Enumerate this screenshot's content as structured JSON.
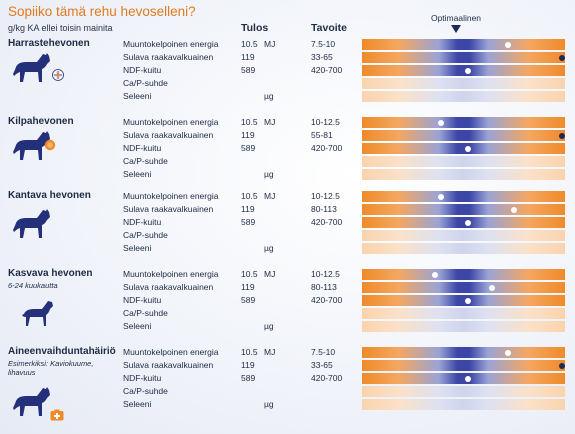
{
  "title": "Sopiiko tämä rehu hevoselleni?",
  "subtitle": "g/kg KA ellei toisin mainita",
  "headers": {
    "result": "Tulos",
    "target": "Tavoite"
  },
  "optimal_label": "Optimaalinen",
  "colors": {
    "orange": "#ef8a2a",
    "blue": "#3c46a6",
    "title": "#e07a1f"
  },
  "sections": [
    {
      "name": "Harrastehevonen",
      "description": "",
      "icon": "horse-icon",
      "badge": "flower-badge-icon",
      "rows": [
        {
          "label": "Muuntokelpoinen energia",
          "value": "10.5",
          "unit": "MJ",
          "target": "7.5-10",
          "marker": 0.72
        },
        {
          "label": "Sulava raakavalkuainen",
          "value": "119",
          "unit": "",
          "target": "33-65",
          "marker": 1.0
        },
        {
          "label": "NDF-kuitu",
          "value": "589",
          "unit": "",
          "target": "420-700",
          "marker": 0.52
        },
        {
          "label": "Ca/P-suhde",
          "value": "",
          "unit": "",
          "target": "",
          "marker": null
        },
        {
          "label": "Seleeni",
          "value": "",
          "unit": "µg",
          "target": "",
          "marker": null
        }
      ]
    },
    {
      "name": "Kilpahevonen",
      "description": "",
      "icon": "horse-icon",
      "badge": "medal-badge-icon",
      "rows": [
        {
          "label": "Muuntokelpoinen energia",
          "value": "10.5",
          "unit": "MJ",
          "target": "10-12.5",
          "marker": 0.39
        },
        {
          "label": "Sulava raakavalkuainen",
          "value": "119",
          "unit": "",
          "target": "55-81",
          "marker": 1.0
        },
        {
          "label": "NDF-kuitu",
          "value": "589",
          "unit": "",
          "target": "420-700",
          "marker": 0.52
        },
        {
          "label": "Ca/P-suhde",
          "value": "",
          "unit": "",
          "target": "",
          "marker": null
        },
        {
          "label": "Seleeni",
          "value": "",
          "unit": "µg",
          "target": "",
          "marker": null
        }
      ]
    },
    {
      "name": "Kantava hevonen",
      "description": "",
      "icon": "horse-icon",
      "badge": "",
      "rows": [
        {
          "label": "Muuntokelpoinen energia",
          "value": "10.5",
          "unit": "MJ",
          "target": "10-12.5",
          "marker": 0.39
        },
        {
          "label": "Sulava raakavalkuainen",
          "value": "119",
          "unit": "",
          "target": "80-113",
          "marker": 0.75
        },
        {
          "label": "NDF-kuitu",
          "value": "589",
          "unit": "",
          "target": "420-700",
          "marker": 0.52
        },
        {
          "label": "Ca/P-suhde",
          "value": "",
          "unit": "",
          "target": "",
          "marker": null
        },
        {
          "label": "Seleeni",
          "value": "",
          "unit": "µg",
          "target": "",
          "marker": null
        }
      ]
    },
    {
      "name": "Kasvava hevonen",
      "description": "6-24 kuukautta",
      "icon": "foal-icon",
      "badge": "",
      "rows": [
        {
          "label": "Muuntokelpoinen energia",
          "value": "10.5",
          "unit": "MJ",
          "target": "10-12.5",
          "marker": 0.36
        },
        {
          "label": "Sulava raakavalkuainen",
          "value": "119",
          "unit": "",
          "target": "80-113",
          "marker": 0.64
        },
        {
          "label": "NDF-kuitu",
          "value": "589",
          "unit": "",
          "target": "420-700",
          "marker": 0.52
        },
        {
          "label": "Ca/P-suhde",
          "value": "",
          "unit": "",
          "target": "",
          "marker": null
        },
        {
          "label": "Seleeni",
          "value": "",
          "unit": "µg",
          "target": "",
          "marker": null
        }
      ]
    },
    {
      "name": "Aineenvaihduntahäiriö",
      "description": "Esimerkiksi: Kaviokuume, lihavuus",
      "icon": "horse-icon",
      "badge": "first-aid-badge-icon",
      "rows": [
        {
          "label": "Muuntokelpoinen energia",
          "value": "10.5",
          "unit": "MJ",
          "target": "7.5-10",
          "marker": 0.72
        },
        {
          "label": "Sulava raakavalkuainen",
          "value": "119",
          "unit": "",
          "target": "33-65",
          "marker": 1.0
        },
        {
          "label": "NDF-kuitu",
          "value": "589",
          "unit": "",
          "target": "420-700",
          "marker": 0.52
        },
        {
          "label": "Ca/P-suhde",
          "value": "",
          "unit": "",
          "target": "",
          "marker": null
        },
        {
          "label": "Seleeni",
          "value": "",
          "unit": "µg",
          "target": "",
          "marker": null
        }
      ]
    }
  ]
}
